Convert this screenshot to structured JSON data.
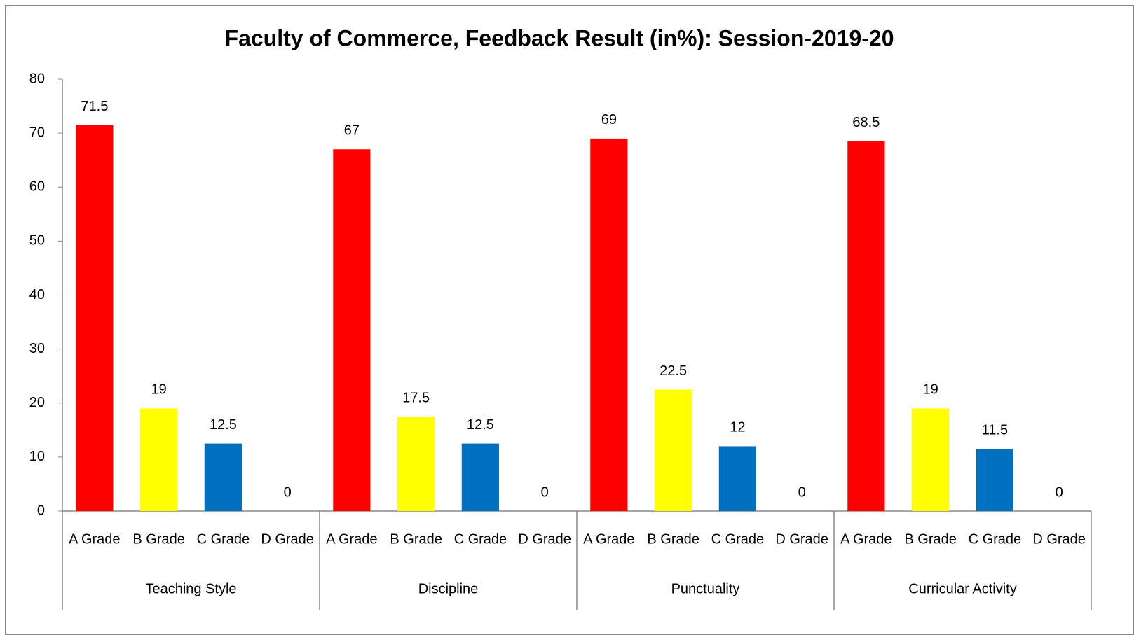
{
  "chart_data": {
    "type": "bar",
    "title": "Faculty of Commerce, Feedback Result (in%): Session-2019-20",
    "categories": [
      "Teaching Style",
      "Discipline",
      "Punctuality",
      "Curricular Activity"
    ],
    "series": [
      {
        "name": "A Grade",
        "color": "#ff0000",
        "values": [
          71.5,
          67,
          69,
          68.5
        ]
      },
      {
        "name": "B Grade",
        "color": "#ffff00",
        "values": [
          19,
          17.5,
          22.5,
          19
        ]
      },
      {
        "name": "C Grade",
        "color": "#0070c0",
        "values": [
          12.5,
          12.5,
          12,
          11.5
        ]
      },
      {
        "name": "D Grade",
        "values": [
          0,
          0,
          0,
          0
        ]
      }
    ],
    "ylim": [
      0,
      80
    ],
    "yticks": [
      0,
      10,
      20,
      30,
      40,
      50,
      60,
      70,
      80
    ],
    "grid": false
  }
}
